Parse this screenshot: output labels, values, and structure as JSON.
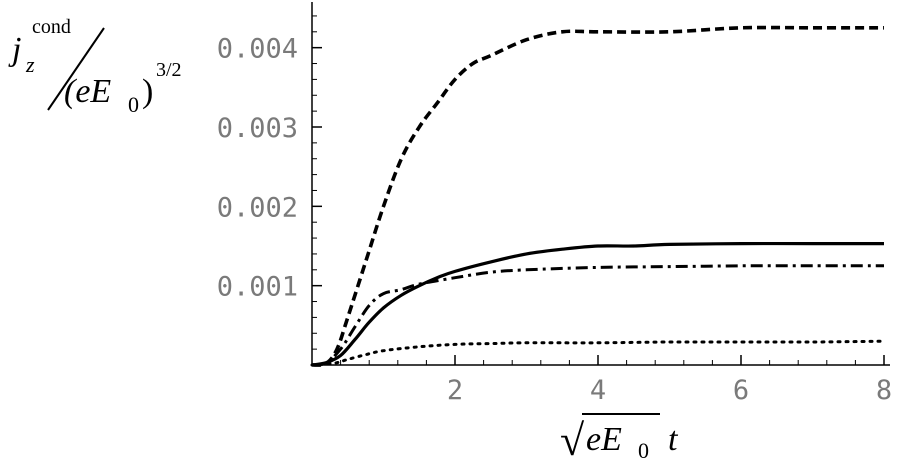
{
  "chart_data": {
    "type": "line",
    "title": "",
    "xlabel": {
      "radical": "√",
      "symbol": "eE",
      "subscript": "0",
      "variable": "t"
    },
    "ylabel": {
      "numerator_symbol": "j",
      "numerator_subscript": "z",
      "numerator_superscript": "cond",
      "denominator_symbol": "(eE",
      "denominator_subscript": "0",
      "denominator_close": ")",
      "denominator_superscript": "3/2"
    },
    "xlim": [
      0,
      8
    ],
    "ylim": [
      0,
      0.0045
    ],
    "x_ticks": [
      2,
      4,
      6,
      8
    ],
    "x_tick_labels": [
      "2",
      "4",
      "6",
      "8"
    ],
    "y_ticks": [
      0.001,
      0.002,
      0.003,
      0.004
    ],
    "y_tick_labels": [
      "0.001",
      "0.002",
      "0.003",
      "0.004"
    ],
    "grid": false,
    "legend": "none",
    "series": [
      {
        "style": "dashed",
        "color": "#000000",
        "x": [
          0,
          0.2,
          0.35,
          0.5,
          0.75,
          1,
          1.25,
          1.5,
          1.75,
          2,
          2.25,
          2.5,
          3,
          3.5,
          4,
          5,
          6,
          7,
          8
        ],
        "y": [
          0,
          2e-05,
          0.0002,
          0.0006,
          0.0013,
          0.002,
          0.0026,
          0.003,
          0.0033,
          0.0036,
          0.0038,
          0.0039,
          0.0041,
          0.0042,
          0.0042,
          0.0042,
          0.00425,
          0.00425,
          0.00425
        ]
      },
      {
        "style": "solid",
        "color": "#000000",
        "x": [
          0,
          0.2,
          0.4,
          0.6,
          0.8,
          1,
          1.25,
          1.5,
          1.75,
          2,
          2.5,
          3,
          3.5,
          4,
          4.5,
          5,
          6,
          7,
          8
        ],
        "y": [
          0,
          3e-05,
          0.00012,
          0.00032,
          0.00054,
          0.00072,
          0.00088,
          0.001,
          0.0011,
          0.00118,
          0.0013,
          0.0014,
          0.00146,
          0.0015,
          0.0015,
          0.00152,
          0.00153,
          0.00153,
          0.00153
        ]
      },
      {
        "style": "dashdot",
        "color": "#000000",
        "x": [
          0,
          0.2,
          0.4,
          0.6,
          0.8,
          1,
          1.25,
          1.5,
          2,
          2.5,
          3,
          4,
          5,
          6,
          7,
          8
        ],
        "y": [
          0,
          3e-05,
          0.0002,
          0.00048,
          0.00075,
          0.0009,
          0.00095,
          0.00102,
          0.0011,
          0.00117,
          0.0012,
          0.00123,
          0.00124,
          0.00125,
          0.00125,
          0.00125
        ]
      },
      {
        "style": "dotted",
        "color": "#000000",
        "x": [
          0,
          0.3,
          0.5,
          0.75,
          1,
          1.5,
          2,
          2.5,
          3,
          4,
          5,
          6,
          7,
          8
        ],
        "y": [
          0,
          2e-05,
          7e-05,
          0.00013,
          0.00018,
          0.00023,
          0.00026,
          0.00027,
          0.00028,
          0.00028,
          0.00029,
          0.00029,
          0.00029,
          0.0003
        ]
      }
    ]
  }
}
